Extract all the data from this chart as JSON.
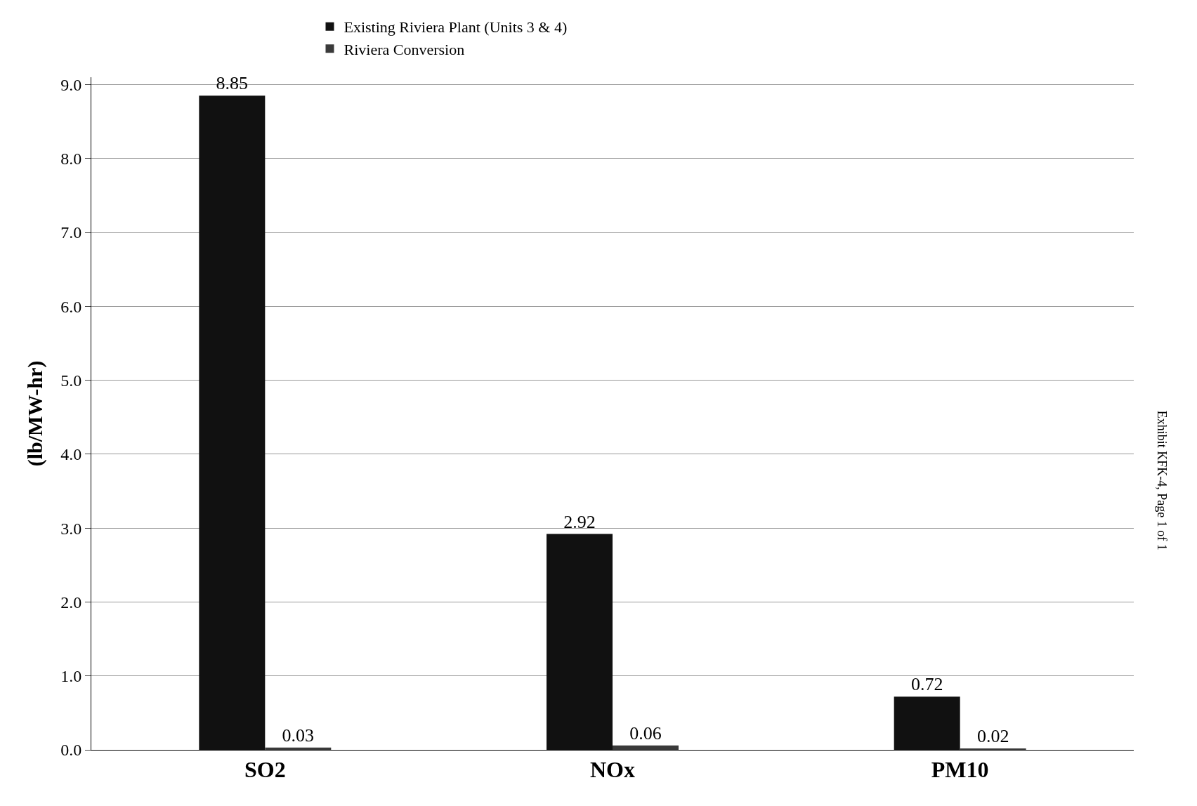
{
  "chart_data": {
    "type": "bar",
    "ylabel": "(lb/MW-hr)",
    "categories": [
      "SO2",
      "NOx",
      "PM10"
    ],
    "series": [
      {
        "name": "Existing Riviera Plant (Units 3 & 4)",
        "color": "#111111",
        "values": [
          8.85,
          2.92,
          0.72
        ]
      },
      {
        "name": "Riviera Conversion",
        "color": "#3a3a3a",
        "values": [
          0.03,
          0.06,
          0.02
        ]
      }
    ],
    "ylim": [
      0,
      9.1
    ],
    "yticks": [
      {
        "value": 0,
        "label": "0.0"
      },
      {
        "value": 1,
        "label": "1.0"
      },
      {
        "value": 2,
        "label": "2.0"
      },
      {
        "value": 3,
        "label": "3.0"
      },
      {
        "value": 4,
        "label": "4.0"
      },
      {
        "value": 5,
        "label": "5.0"
      },
      {
        "value": 6,
        "label": "6.0"
      },
      {
        "value": 7,
        "label": "7.0"
      },
      {
        "value": 8,
        "label": "8.0"
      },
      {
        "value": 9,
        "label": "9.0"
      }
    ],
    "grid": "y",
    "legend": "top",
    "data_labels": true,
    "annotations": [
      "Exhibit KFK-4, Page 1 of 1"
    ]
  }
}
